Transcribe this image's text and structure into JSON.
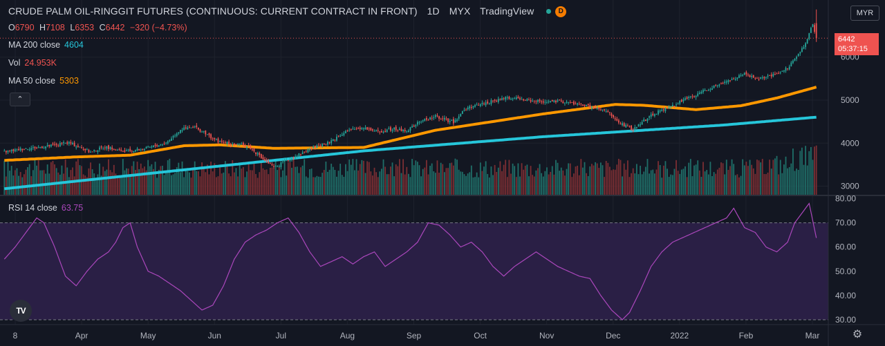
{
  "header": {
    "symbol": "CRUDE PALM OIL-RINGGIT FUTURES (CONTINUOUS: CURRENT CONTRACT IN FRONT)",
    "interval": "1D",
    "exchange": "MYX",
    "source": "TradingView",
    "delay_badge": "D"
  },
  "ohlc": {
    "open_label": "O",
    "open": "6790",
    "high_label": "H",
    "high": "7108",
    "low_label": "L",
    "low": "6353",
    "close_label": "C",
    "close": "6442",
    "change": "−320 (−4.73%)"
  },
  "legends": {
    "ma200": {
      "label": "MA 200 close",
      "value": "4604",
      "color": "#26c6da"
    },
    "vol": {
      "label": "Vol",
      "value": "24.953K",
      "color": "#ef5350"
    },
    "ma50": {
      "label": "MA 50 close",
      "value": "5303",
      "color": "#ff9800"
    },
    "rsi": {
      "label": "RSI 14 close",
      "value": "63.75",
      "color": "#ab47bc"
    }
  },
  "controls": {
    "collapse": "⌃",
    "currency": "MYR",
    "logo": "TV",
    "settings": "⚙"
  },
  "price_tag": {
    "price": "6442",
    "countdown": "05:37:15"
  },
  "colors": {
    "up": "#26a69a",
    "down": "#ef5350",
    "vol_up": "#1f6e68",
    "vol_down": "#7a2e33",
    "ma50": "#ff9800",
    "ma200": "#26c6da",
    "rsi_line": "#ab47bc",
    "rsi_band": "#2a1f45",
    "background": "#131722",
    "grid": "#1e222d",
    "text": "#b2b5be"
  },
  "chart_data": [
    {
      "type": "candlestick",
      "ylim": [
        2800,
        7200
      ],
      "y_ticks": [
        "3000",
        "4000",
        "5000",
        "6000"
      ],
      "x_ticks": [
        "8",
        "Apr",
        "May",
        "Jun",
        "Jul",
        "Aug",
        "Sep",
        "Oct",
        "Nov",
        "Dec",
        "2022",
        "Feb",
        "Mar"
      ],
      "close_path": [
        [
          0,
          3800
        ],
        [
          12,
          3880
        ],
        [
          24,
          3930
        ],
        [
          36,
          4010
        ],
        [
          48,
          3790
        ],
        [
          56,
          3920
        ],
        [
          66,
          3800
        ],
        [
          78,
          3870
        ],
        [
          90,
          4010
        ],
        [
          98,
          4320
        ],
        [
          106,
          4370
        ],
        [
          112,
          4220
        ],
        [
          120,
          4020
        ],
        [
          128,
          3980
        ],
        [
          136,
          3930
        ],
        [
          142,
          3700
        ],
        [
          150,
          3430
        ],
        [
          160,
          3660
        ],
        [
          170,
          3860
        ],
        [
          180,
          4000
        ],
        [
          190,
          4280
        ],
        [
          200,
          4370
        ],
        [
          208,
          4260
        ],
        [
          216,
          4330
        ],
        [
          224,
          4290
        ],
        [
          232,
          4520
        ],
        [
          240,
          4620
        ],
        [
          250,
          4490
        ],
        [
          256,
          4780
        ],
        [
          266,
          4920
        ],
        [
          280,
          5050
        ],
        [
          296,
          4980
        ],
        [
          312,
          4960
        ],
        [
          322,
          4890
        ],
        [
          330,
          4800
        ],
        [
          336,
          4720
        ],
        [
          342,
          4480
        ],
        [
          350,
          4320
        ],
        [
          360,
          4650
        ],
        [
          368,
          4800
        ],
        [
          378,
          5000
        ],
        [
          388,
          5180
        ],
        [
          396,
          5350
        ],
        [
          404,
          5470
        ],
        [
          412,
          5600
        ],
        [
          420,
          5500
        ],
        [
          426,
          5550
        ],
        [
          434,
          5670
        ],
        [
          440,
          5950
        ],
        [
          446,
          6300
        ],
        [
          450,
          6790
        ],
        [
          452,
          6442
        ]
      ],
      "ma50": [
        [
          0,
          3600
        ],
        [
          40,
          3680
        ],
        [
          70,
          3720
        ],
        [
          100,
          3940
        ],
        [
          120,
          3960
        ],
        [
          150,
          3880
        ],
        [
          200,
          3900
        ],
        [
          240,
          4300
        ],
        [
          300,
          4680
        ],
        [
          340,
          4900
        ],
        [
          356,
          4880
        ],
        [
          385,
          4780
        ],
        [
          410,
          4870
        ],
        [
          430,
          5050
        ],
        [
          452,
          5303
        ]
      ],
      "ma200": [
        [
          0,
          2940
        ],
        [
          100,
          3380
        ],
        [
          200,
          3820
        ],
        [
          300,
          4150
        ],
        [
          400,
          4420
        ],
        [
          452,
          4604
        ]
      ],
      "last_bar": {
        "open": 6790,
        "high": 7108,
        "low": 6353,
        "close": 6442
      }
    },
    {
      "type": "line",
      "series": [
        {
          "name": "RSI 14 close",
          "values": [
            [
              0,
              55
            ],
            [
              6,
              60
            ],
            [
              12,
              66
            ],
            [
              18,
              72
            ],
            [
              22,
              70
            ],
            [
              28,
              60
            ],
            [
              34,
              48
            ],
            [
              40,
              44
            ],
            [
              46,
              50
            ],
            [
              52,
              55
            ],
            [
              58,
              58
            ],
            [
              62,
              62
            ],
            [
              66,
              68
            ],
            [
              70,
              70
            ],
            [
              74,
              60
            ],
            [
              80,
              50
            ],
            [
              86,
              48
            ],
            [
              92,
              45
            ],
            [
              98,
              42
            ],
            [
              104,
              38
            ],
            [
              110,
              34
            ],
            [
              116,
              36
            ],
            [
              122,
              44
            ],
            [
              128,
              55
            ],
            [
              134,
              62
            ],
            [
              140,
              65
            ],
            [
              146,
              67
            ],
            [
              152,
              70
            ],
            [
              158,
              72
            ],
            [
              164,
              66
            ],
            [
              170,
              58
            ],
            [
              176,
              52
            ],
            [
              182,
              54
            ],
            [
              188,
              56
            ],
            [
              194,
              53
            ],
            [
              200,
              56
            ],
            [
              206,
              58
            ],
            [
              212,
              52
            ],
            [
              218,
              55
            ],
            [
              224,
              58
            ],
            [
              230,
              62
            ],
            [
              236,
              70
            ],
            [
              242,
              69
            ],
            [
              248,
              65
            ],
            [
              254,
              60
            ],
            [
              260,
              62
            ],
            [
              266,
              58
            ],
            [
              272,
              52
            ],
            [
              278,
              48
            ],
            [
              284,
              52
            ],
            [
              290,
              55
            ],
            [
              296,
              58
            ],
            [
              302,
              55
            ],
            [
              308,
              52
            ],
            [
              314,
              50
            ],
            [
              320,
              48
            ],
            [
              326,
              47
            ],
            [
              332,
              40
            ],
            [
              338,
              34
            ],
            [
              344,
              30
            ],
            [
              348,
              33
            ],
            [
              354,
              42
            ],
            [
              360,
              52
            ],
            [
              366,
              58
            ],
            [
              372,
              62
            ],
            [
              378,
              64
            ],
            [
              384,
              66
            ],
            [
              390,
              68
            ],
            [
              396,
              70
            ],
            [
              402,
              72
            ],
            [
              406,
              76
            ],
            [
              412,
              68
            ],
            [
              418,
              66
            ],
            [
              424,
              60
            ],
            [
              430,
              58
            ],
            [
              436,
              62
            ],
            [
              440,
              70
            ],
            [
              444,
              74
            ],
            [
              448,
              78
            ],
            [
              452,
              63.75
            ]
          ]
        }
      ],
      "ylim": [
        28,
        81
      ],
      "y_ticks": [
        "30.00",
        "40.00",
        "50.00",
        "60.00",
        "70.00",
        "80.00"
      ],
      "bands": [
        30,
        70
      ]
    }
  ]
}
